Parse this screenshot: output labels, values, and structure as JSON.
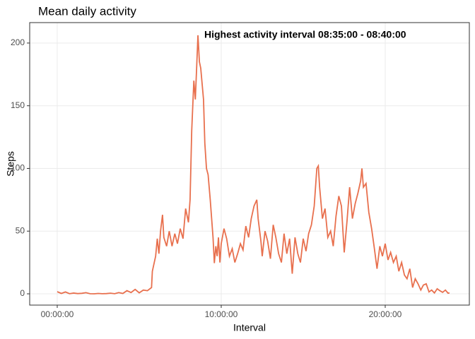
{
  "chart_data": {
    "type": "line",
    "title": "Mean daily activity",
    "x_label": "Interval",
    "y_label": "Steps",
    "annotation": "Highest activity interval 08:35:00 - 08:40:00",
    "color": "#e8704e",
    "grid": true,
    "xlim": [
      -1.68,
      25.13
    ],
    "ylim": [
      -9,
      216.3
    ],
    "xticks": [
      {
        "value": 0,
        "label": "00:00:00"
      },
      {
        "value": 10,
        "label": "10:00:00"
      },
      {
        "value": 20,
        "label": "20:00:00"
      }
    ],
    "yticks": [
      0,
      50,
      100,
      150,
      200
    ],
    "x": [
      0,
      0.25,
      0.5,
      0.75,
      1,
      1.25,
      1.5,
      1.75,
      2,
      2.25,
      2.5,
      2.75,
      3,
      3.25,
      3.5,
      3.75,
      4,
      4.25,
      4.5,
      4.75,
      5,
      5.25,
      5.5,
      5.75,
      5.8,
      6,
      6.1,
      6.2,
      6.3,
      6.42,
      6.5,
      6.67,
      6.83,
      7,
      7.17,
      7.33,
      7.5,
      7.67,
      7.83,
      8,
      8.1,
      8.2,
      8.33,
      8.42,
      8.5,
      8.58,
      8.67,
      8.75,
      8.92,
      9,
      9.1,
      9.2,
      9.33,
      9.5,
      9.58,
      9.67,
      9.75,
      9.83,
      9.92,
      10,
      10.17,
      10.33,
      10.5,
      10.67,
      10.83,
      11,
      11.17,
      11.33,
      11.5,
      11.67,
      11.83,
      12,
      12.17,
      12.25,
      12.42,
      12.5,
      12.67,
      12.83,
      13,
      13.17,
      13.33,
      13.5,
      13.67,
      13.83,
      14,
      14.17,
      14.33,
      14.5,
      14.67,
      14.83,
      15,
      15.17,
      15.33,
      15.5,
      15.67,
      15.83,
      15.92,
      16,
      16.17,
      16.33,
      16.5,
      16.67,
      16.83,
      17,
      17.17,
      17.33,
      17.5,
      17.67,
      17.83,
      18,
      18.17,
      18.33,
      18.5,
      18.58,
      18.67,
      18.83,
      19,
      19.17,
      19.33,
      19.5,
      19.67,
      19.83,
      20,
      20.17,
      20.33,
      20.5,
      20.67,
      20.83,
      21,
      21.17,
      21.33,
      21.5,
      21.67,
      21.83,
      22,
      22.17,
      22.33,
      22.5,
      22.67,
      22.83,
      23,
      23.17,
      23.33,
      23.5,
      23.67,
      23.83,
      23.92
    ],
    "values": [
      1.7,
      0.3,
      1.5,
      0.1,
      0.6,
      0.2,
      0.4,
      0.9,
      0.1,
      0,
      0.3,
      0.1,
      0.2,
      0.5,
      0.1,
      1.0,
      0.3,
      2.5,
      1.0,
      3.5,
      0.8,
      3.0,
      2.5,
      5.0,
      18,
      30,
      44,
      32,
      50,
      63,
      45,
      38,
      50,
      38,
      48,
      40,
      52,
      44,
      68,
      57,
      75,
      130,
      170,
      155,
      180,
      206.2,
      185,
      180,
      155,
      120,
      100,
      95,
      75,
      45,
      24.5,
      38,
      30,
      45,
      25,
      40,
      52,
      44,
      30,
      36,
      25,
      32,
      40,
      35,
      54,
      45,
      60,
      70,
      75,
      60,
      42,
      30,
      50,
      42,
      28,
      55,
      45,
      32,
      25,
      48,
      32,
      44,
      16,
      45,
      32,
      25,
      44,
      34,
      48,
      55,
      70,
      100,
      102,
      85,
      60,
      68,
      45,
      50,
      38,
      62,
      78,
      70,
      33,
      58,
      85,
      60,
      72,
      80,
      90,
      100,
      85,
      88,
      65,
      52,
      37,
      20,
      38,
      30,
      40,
      27,
      33,
      25,
      30,
      18,
      25,
      15,
      12,
      20,
      5,
      12,
      8,
      3,
      7,
      8,
      1.5,
      3,
      0.7,
      4,
      2.5,
      1.2,
      3,
      0.5,
      0.7
    ]
  }
}
